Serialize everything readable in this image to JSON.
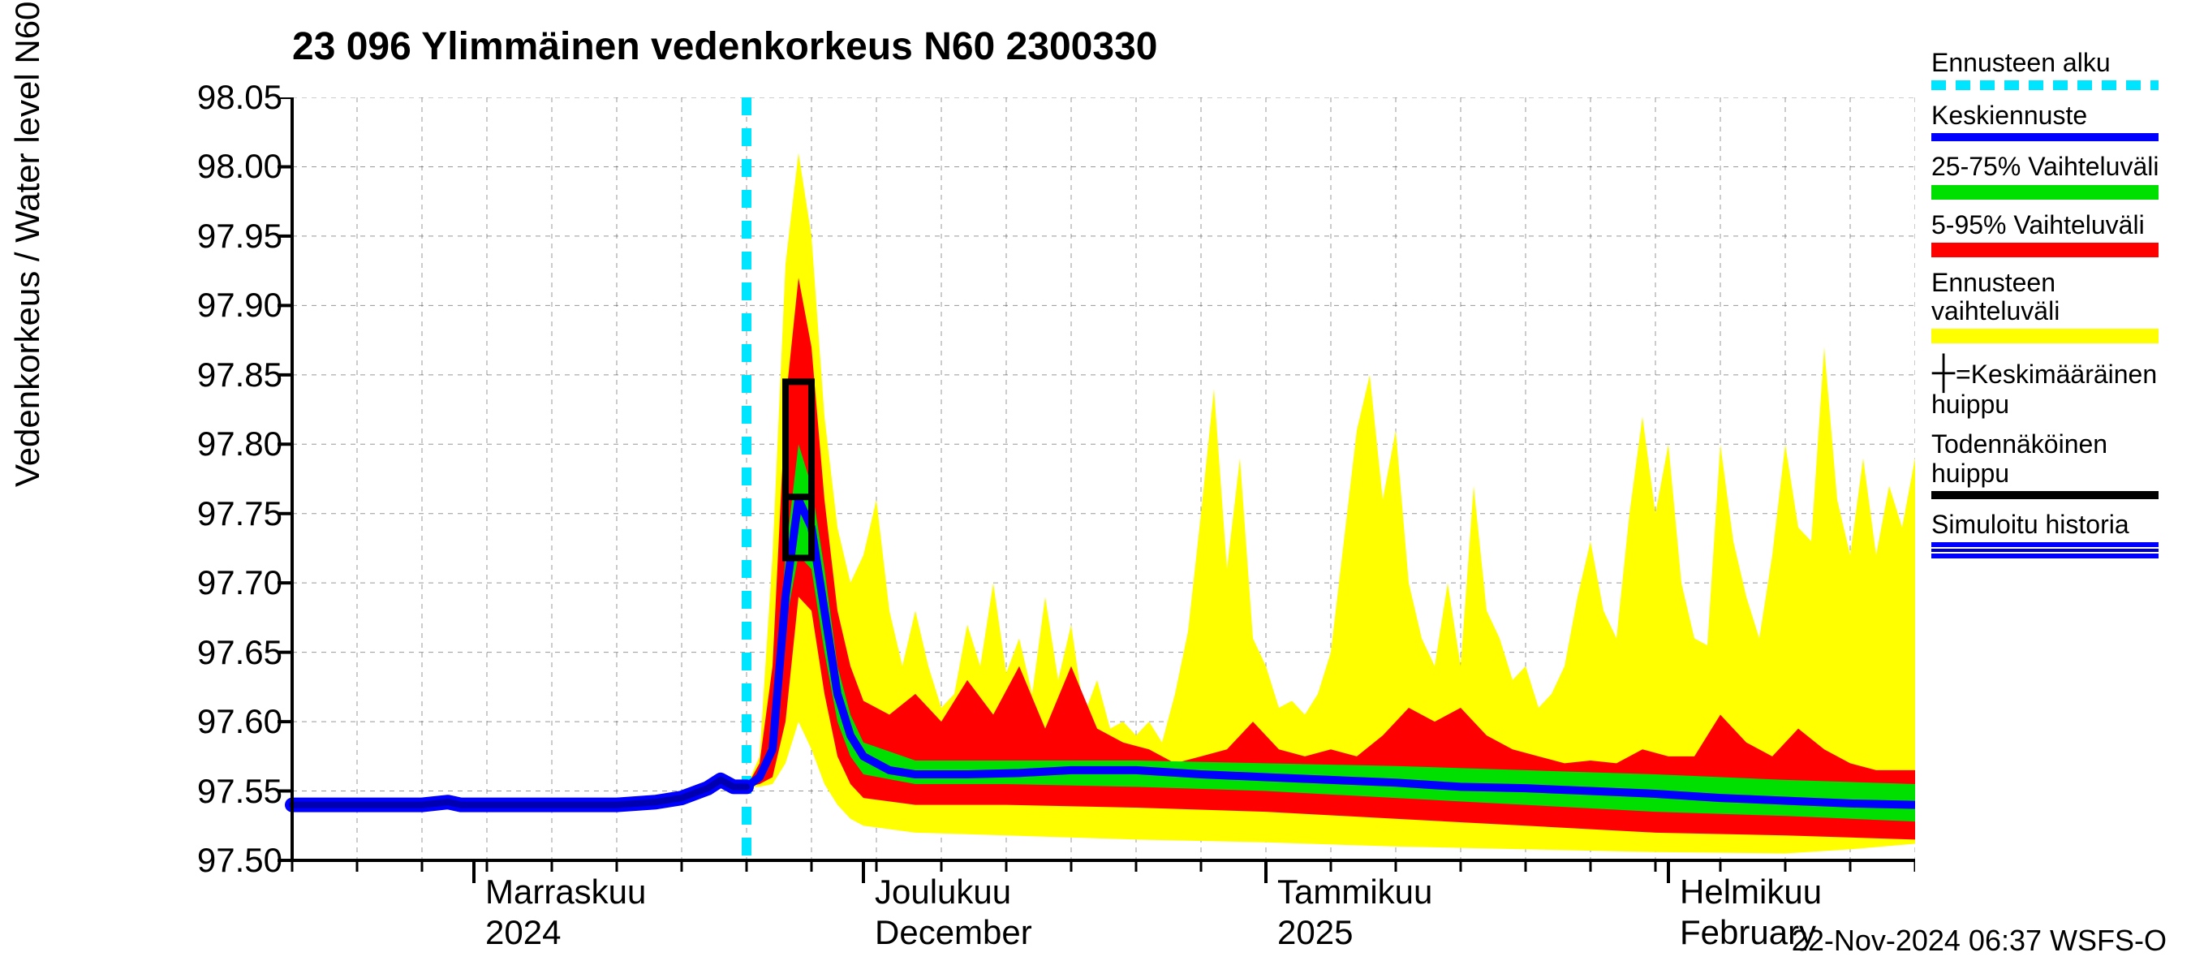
{
  "chart": {
    "type": "timeseries-band",
    "title": "23 096 Ylimmäinen vedenkorkeus N60 2300330",
    "ylabel": "Vedenkorkeus / Water level    N60+m",
    "timestamp": "22-Nov-2024 06:37 WSFS-O",
    "title_fontsize": 48,
    "label_fontsize": 42,
    "tick_fontsize": 42,
    "colors": {
      "background": "#ffffff",
      "grid": "#444444",
      "forecast_start_line": "#00e5ff",
      "mean_forecast": "#0000ff",
      "iqr_band": "#00e000",
      "p90_band": "#ff0000",
      "full_band": "#ffff00",
      "peak_box": "#000000",
      "history_outer": "#0000ff",
      "history_inner": "#0000b0"
    },
    "ylim": [
      97.5,
      98.05
    ],
    "yticks": [
      97.5,
      97.55,
      97.6,
      97.65,
      97.7,
      97.75,
      97.8,
      97.85,
      97.9,
      97.95,
      98.0,
      98.05
    ],
    "x_time_range_days": 125,
    "x_start_day": 0,
    "x_major_month_ticks": [
      {
        "day": 14,
        "month_top": "Marraskuu",
        "month_bottom": "2024"
      },
      {
        "day": 44,
        "month_top": "Joulukuu",
        "month_bottom": "December"
      },
      {
        "day": 75,
        "month_top": "Tammikuu",
        "month_bottom": "2025"
      },
      {
        "day": 106,
        "month_top": "Helmikuu",
        "month_bottom": "February"
      }
    ],
    "x_minor_tick_step_days": 5,
    "forecast_start_day": 35,
    "history": [
      [
        0,
        97.54
      ],
      [
        5,
        97.54
      ],
      [
        10,
        97.54
      ],
      [
        12,
        97.542
      ],
      [
        13,
        97.54
      ],
      [
        15,
        97.54
      ],
      [
        18,
        97.54
      ],
      [
        22,
        97.54
      ],
      [
        25,
        97.54
      ],
      [
        28,
        97.542
      ],
      [
        30,
        97.545
      ],
      [
        32,
        97.552
      ],
      [
        33,
        97.558
      ],
      [
        34,
        97.553
      ],
      [
        35,
        97.553
      ]
    ],
    "mean_forecast": [
      [
        35,
        97.553
      ],
      [
        36,
        97.56
      ],
      [
        37,
        97.58
      ],
      [
        38,
        97.69
      ],
      [
        39,
        97.76
      ],
      [
        40,
        97.74
      ],
      [
        41,
        97.68
      ],
      [
        42,
        97.62
      ],
      [
        43,
        97.59
      ],
      [
        44,
        97.575
      ],
      [
        46,
        97.565
      ],
      [
        48,
        97.562
      ],
      [
        52,
        97.562
      ],
      [
        56,
        97.563
      ],
      [
        60,
        97.565
      ],
      [
        65,
        97.565
      ],
      [
        70,
        97.562
      ],
      [
        75,
        97.56
      ],
      [
        80,
        97.558
      ],
      [
        85,
        97.556
      ],
      [
        90,
        97.553
      ],
      [
        95,
        97.552
      ],
      [
        100,
        97.55
      ],
      [
        105,
        97.548
      ],
      [
        110,
        97.545
      ],
      [
        115,
        97.543
      ],
      [
        120,
        97.541
      ],
      [
        125,
        97.54
      ]
    ],
    "iqr_lower": [
      [
        35,
        97.553
      ],
      [
        36,
        97.558
      ],
      [
        37,
        97.575
      ],
      [
        38,
        97.67
      ],
      [
        39,
        97.72
      ],
      [
        40,
        97.71
      ],
      [
        41,
        97.65
      ],
      [
        42,
        97.6
      ],
      [
        43,
        97.575
      ],
      [
        44,
        97.562
      ],
      [
        48,
        97.555
      ],
      [
        55,
        97.555
      ],
      [
        65,
        97.553
      ],
      [
        75,
        97.55
      ],
      [
        85,
        97.545
      ],
      [
        95,
        97.54
      ],
      [
        105,
        97.535
      ],
      [
        115,
        97.532
      ],
      [
        125,
        97.528
      ]
    ],
    "iqr_upper": [
      [
        35,
        97.553
      ],
      [
        36,
        97.562
      ],
      [
        37,
        97.59
      ],
      [
        38,
        97.72
      ],
      [
        39,
        97.8
      ],
      [
        40,
        97.77
      ],
      [
        41,
        97.71
      ],
      [
        42,
        97.64
      ],
      [
        43,
        97.605
      ],
      [
        44,
        97.585
      ],
      [
        48,
        97.572
      ],
      [
        55,
        97.572
      ],
      [
        65,
        97.572
      ],
      [
        75,
        97.57
      ],
      [
        85,
        97.568
      ],
      [
        95,
        97.565
      ],
      [
        105,
        97.562
      ],
      [
        115,
        97.558
      ],
      [
        125,
        97.555
      ]
    ],
    "p90_lower": [
      [
        35,
        97.553
      ],
      [
        36,
        97.555
      ],
      [
        37,
        97.56
      ],
      [
        38,
        97.6
      ],
      [
        39,
        97.69
      ],
      [
        40,
        97.68
      ],
      [
        41,
        97.62
      ],
      [
        42,
        97.575
      ],
      [
        43,
        97.555
      ],
      [
        44,
        97.545
      ],
      [
        48,
        97.54
      ],
      [
        55,
        97.54
      ],
      [
        65,
        97.538
      ],
      [
        75,
        97.535
      ],
      [
        85,
        97.53
      ],
      [
        95,
        97.525
      ],
      [
        105,
        97.52
      ],
      [
        115,
        97.518
      ],
      [
        125,
        97.515
      ]
    ],
    "p90_upper": [
      [
        35,
        97.553
      ],
      [
        36,
        97.57
      ],
      [
        37,
        97.64
      ],
      [
        38,
        97.83
      ],
      [
        39,
        97.92
      ],
      [
        40,
        97.87
      ],
      [
        41,
        97.76
      ],
      [
        42,
        97.68
      ],
      [
        43,
        97.64
      ],
      [
        44,
        97.615
      ],
      [
        46,
        97.605
      ],
      [
        48,
        97.62
      ],
      [
        50,
        97.6
      ],
      [
        52,
        97.63
      ],
      [
        54,
        97.605
      ],
      [
        56,
        97.64
      ],
      [
        58,
        97.595
      ],
      [
        60,
        97.64
      ],
      [
        62,
        97.595
      ],
      [
        64,
        97.585
      ],
      [
        66,
        97.58
      ],
      [
        68,
        97.57
      ],
      [
        70,
        97.575
      ],
      [
        72,
        97.58
      ],
      [
        74,
        97.6
      ],
      [
        76,
        97.58
      ],
      [
        78,
        97.575
      ],
      [
        80,
        97.58
      ],
      [
        82,
        97.575
      ],
      [
        84,
        97.59
      ],
      [
        86,
        97.61
      ],
      [
        88,
        97.6
      ],
      [
        90,
        97.61
      ],
      [
        92,
        97.59
      ],
      [
        94,
        97.58
      ],
      [
        96,
        97.575
      ],
      [
        98,
        97.57
      ],
      [
        100,
        97.572
      ],
      [
        102,
        97.57
      ],
      [
        104,
        97.58
      ],
      [
        106,
        97.575
      ],
      [
        108,
        97.575
      ],
      [
        110,
        97.605
      ],
      [
        112,
        97.585
      ],
      [
        114,
        97.575
      ],
      [
        116,
        97.595
      ],
      [
        118,
        97.58
      ],
      [
        120,
        97.57
      ],
      [
        122,
        97.565
      ],
      [
        125,
        97.565
      ]
    ],
    "full_lower": [
      [
        35,
        97.553
      ],
      [
        36,
        97.553
      ],
      [
        37,
        97.555
      ],
      [
        38,
        97.57
      ],
      [
        39,
        97.6
      ],
      [
        40,
        97.58
      ],
      [
        41,
        97.555
      ],
      [
        42,
        97.54
      ],
      [
        43,
        97.53
      ],
      [
        44,
        97.525
      ],
      [
        48,
        97.52
      ],
      [
        55,
        97.518
      ],
      [
        65,
        97.515
      ],
      [
        75,
        97.513
      ],
      [
        85,
        97.51
      ],
      [
        95,
        97.508
      ],
      [
        105,
        97.506
      ],
      [
        115,
        97.505
      ],
      [
        120,
        97.508
      ],
      [
        125,
        97.512
      ]
    ],
    "full_upper": [
      [
        35,
        97.553
      ],
      [
        36,
        97.575
      ],
      [
        37,
        97.72
      ],
      [
        38,
        97.93
      ],
      [
        39,
        98.01
      ],
      [
        40,
        97.95
      ],
      [
        41,
        97.82
      ],
      [
        42,
        97.74
      ],
      [
        43,
        97.7
      ],
      [
        44,
        97.72
      ],
      [
        45,
        97.76
      ],
      [
        46,
        97.68
      ],
      [
        47,
        97.64
      ],
      [
        48,
        97.68
      ],
      [
        49,
        97.64
      ],
      [
        50,
        97.61
      ],
      [
        51,
        97.62
      ],
      [
        52,
        97.67
      ],
      [
        53,
        97.64
      ],
      [
        54,
        97.7
      ],
      [
        55,
        97.635
      ],
      [
        56,
        97.66
      ],
      [
        57,
        97.62
      ],
      [
        58,
        97.69
      ],
      [
        59,
        97.63
      ],
      [
        60,
        97.67
      ],
      [
        61,
        97.605
      ],
      [
        62,
        97.63
      ],
      [
        63,
        97.595
      ],
      [
        64,
        97.6
      ],
      [
        65,
        97.59
      ],
      [
        66,
        97.6
      ],
      [
        67,
        97.585
      ],
      [
        68,
        97.62
      ],
      [
        69,
        97.665
      ],
      [
        70,
        97.75
      ],
      [
        71,
        97.84
      ],
      [
        72,
        97.71
      ],
      [
        73,
        97.79
      ],
      [
        74,
        97.66
      ],
      [
        75,
        97.64
      ],
      [
        76,
        97.61
      ],
      [
        77,
        97.615
      ],
      [
        78,
        97.605
      ],
      [
        79,
        97.62
      ],
      [
        80,
        97.65
      ],
      [
        81,
        97.73
      ],
      [
        82,
        97.81
      ],
      [
        83,
        97.85
      ],
      [
        84,
        97.76
      ],
      [
        85,
        97.81
      ],
      [
        86,
        97.7
      ],
      [
        87,
        97.66
      ],
      [
        88,
        97.64
      ],
      [
        89,
        97.7
      ],
      [
        90,
        97.64
      ],
      [
        91,
        97.77
      ],
      [
        92,
        97.68
      ],
      [
        93,
        97.66
      ],
      [
        94,
        97.63
      ],
      [
        95,
        97.64
      ],
      [
        96,
        97.61
      ],
      [
        97,
        97.62
      ],
      [
        98,
        97.64
      ],
      [
        99,
        97.69
      ],
      [
        100,
        97.73
      ],
      [
        101,
        97.68
      ],
      [
        102,
        97.66
      ],
      [
        103,
        97.75
      ],
      [
        104,
        97.82
      ],
      [
        105,
        97.75
      ],
      [
        106,
        97.8
      ],
      [
        107,
        97.7
      ],
      [
        108,
        97.66
      ],
      [
        109,
        97.655
      ],
      [
        110,
        97.8
      ],
      [
        111,
        97.73
      ],
      [
        112,
        97.69
      ],
      [
        113,
        97.66
      ],
      [
        114,
        97.72
      ],
      [
        115,
        97.8
      ],
      [
        116,
        97.74
      ],
      [
        117,
        97.73
      ],
      [
        118,
        97.87
      ],
      [
        119,
        97.76
      ],
      [
        120,
        97.72
      ],
      [
        121,
        97.79
      ],
      [
        122,
        97.72
      ],
      [
        123,
        97.77
      ],
      [
        124,
        97.74
      ],
      [
        125,
        97.79
      ]
    ],
    "peak_box": {
      "day_start": 38.0,
      "day_end": 40.0,
      "low": 97.718,
      "high": 97.845,
      "median": 97.762
    },
    "legend": [
      {
        "label": "Ennusteen alku",
        "kind": "dashed",
        "color": "#00e5ff"
      },
      {
        "label": "Keskiennuste",
        "kind": "line",
        "color": "#0000ff"
      },
      {
        "label": "25-75% Vaihteluväli",
        "kind": "band",
        "color": "#00e000"
      },
      {
        "label": "5-95% Vaihteluväli",
        "kind": "band",
        "color": "#ff0000"
      },
      {
        "label": "Ennusteen vaihteluväli",
        "kind": "band",
        "color": "#ffff00"
      },
      {
        "label": "=Keskimääräinen huippu",
        "kind": "boxmark",
        "color": "#000000"
      },
      {
        "label": "Todennäköinen huippu",
        "kind": "line",
        "color": "#000000"
      },
      {
        "label": "Simuloitu historia",
        "kind": "thick",
        "color": "#0000ff"
      }
    ]
  }
}
